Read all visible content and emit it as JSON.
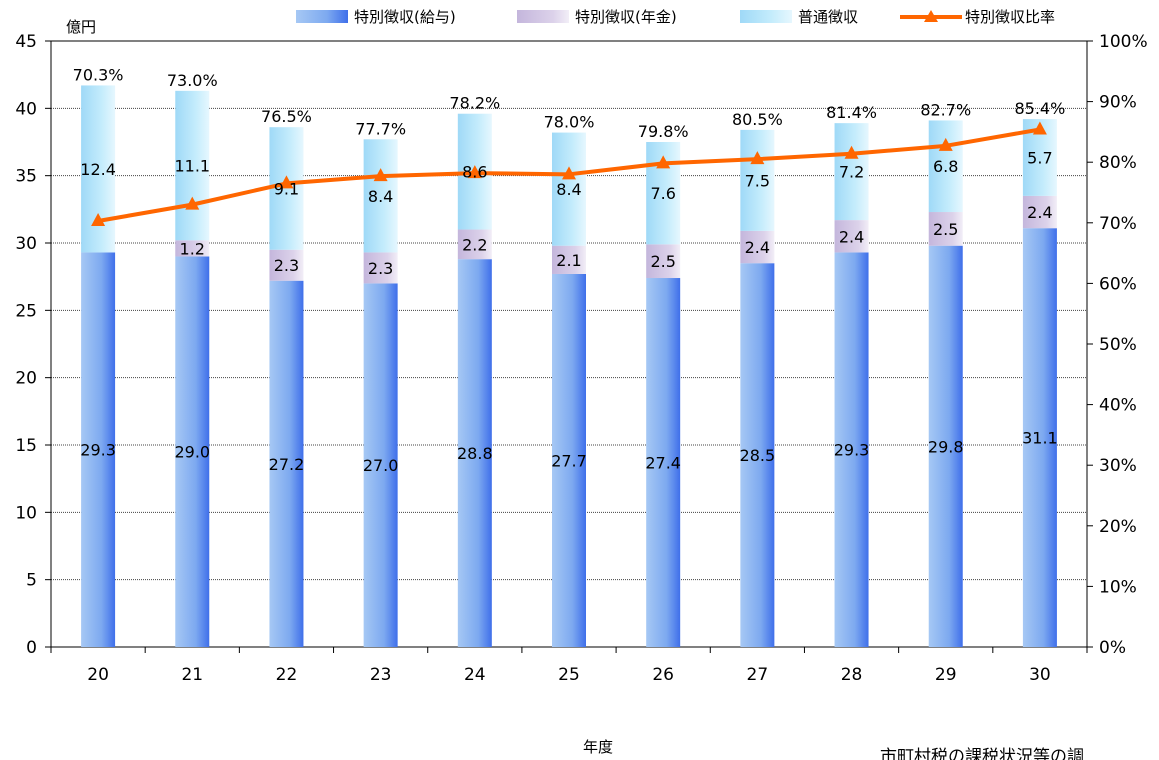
{
  "chart_data": {
    "type": "bar",
    "stacked": true,
    "categories": [
      "20",
      "21",
      "22",
      "23",
      "24",
      "25",
      "26",
      "27",
      "28",
      "29",
      "30"
    ],
    "series": [
      {
        "name": "特別徴収(給与)",
        "values": [
          29.3,
          29.0,
          27.2,
          27.0,
          28.8,
          27.7,
          27.4,
          28.5,
          29.3,
          29.8,
          31.1
        ],
        "color": "#5b8ff0"
      },
      {
        "name": "特別徴収(年金)",
        "values": [
          0,
          1.2,
          2.3,
          2.3,
          2.2,
          2.1,
          2.5,
          2.4,
          2.4,
          2.5,
          2.4
        ],
        "color": "#d3c3e6"
      },
      {
        "name": "普通徴収",
        "values": [
          12.4,
          11.1,
          9.1,
          8.4,
          8.6,
          8.4,
          7.6,
          7.5,
          7.2,
          6.8,
          5.7
        ],
        "color": "#bfeafc"
      }
    ],
    "line_series": {
      "name": "特別徴収比率",
      "values": [
        70.3,
        73.0,
        76.5,
        77.7,
        78.2,
        78.0,
        79.8,
        80.5,
        81.4,
        82.7,
        85.4
      ],
      "labels": [
        "70.3%",
        "73.0%",
        "76.5%",
        "77.7%",
        "78.2%",
        "78.0%",
        "79.8%",
        "80.5%",
        "81.4%",
        "82.7%",
        "85.4%"
      ],
      "color": "#ff6600"
    },
    "y_label": "億円",
    "x_label": "年度",
    "ylim": [
      0,
      45
    ],
    "y_ticks": [
      "0",
      "5",
      "10",
      "15",
      "20",
      "25",
      "30",
      "35",
      "40",
      "45"
    ],
    "y2lim": [
      0,
      100
    ],
    "y2_ticks": [
      "0%",
      "10%",
      "20%",
      "30%",
      "40%",
      "50%",
      "60%",
      "70%",
      "80%",
      "90%",
      "100%"
    ],
    "legend_position": "top",
    "grid": true
  },
  "source_note": "市町村税の課税状況等の調"
}
